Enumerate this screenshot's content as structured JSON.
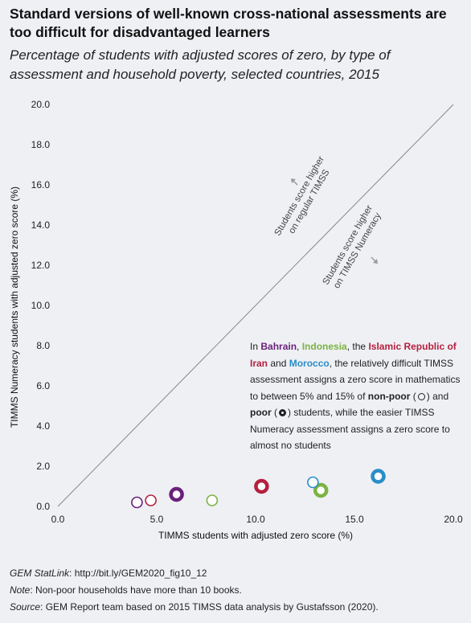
{
  "title": "Standard versions of well-known cross-national assessments are too difficult for disadvantaged learners",
  "subtitle": "Percentage of students with adjusted scores of zero, by type of assessment and household poverty, selected countries, 2015",
  "region_labels": {
    "upper_line1": "Students score higher",
    "upper_line2": "on regular TIMSS",
    "lower_line1": "Students score higher",
    "lower_line2": "on TIMSS Numeracy"
  },
  "annotation": {
    "in": "In",
    "bahrain": "Bahrain",
    "sep1": ", ",
    "indonesia": "Indonesia",
    "sep2": ", the",
    "iran": "Islamic Republic of Iran",
    "and": "and",
    "morocco": "Morocco",
    "rest1": ", the relatively difficult TIMSS assessment assigns a zero score in mathematics to between 5% and 15% of",
    "nonpoor": "non-poor",
    "rest2": "and",
    "poor": "poor",
    "rest3": "students, while the easier TIMSS Numeracy assessment assigns a zero score to almost no students"
  },
  "footer": {
    "statlink_label": "GEM StatLink",
    "statlink_value": ": http://bit.ly/GEM2020_fig10_12",
    "note_label": "Note",
    "note_value": ": Non-poor households have more than 10 books.",
    "source_label": "Source",
    "source_value": ": GEM Report team based on 2015 TIMSS data analysis by Gustafsson (2020)."
  },
  "colors": {
    "Bahrain": "#6a1f7a",
    "Indonesia": "#7cb342",
    "Islamic Republic of Iran": "#b5203f",
    "Morocco": "#2a8dc8",
    "diagonal": "#888888",
    "background": "#eef0f4"
  },
  "chart_data": {
    "type": "scatter",
    "xlabel": "TIMMS students with adjusted zero score (%)",
    "ylabel": "TIMMS Numeracy students with adjusted zero score (%)",
    "xlim": [
      0,
      20
    ],
    "ylim": [
      0,
      20
    ],
    "x_ticks": [
      "0.0",
      "5.0",
      "10.0",
      "15.0",
      "20.0"
    ],
    "y_ticks": [
      "0.0",
      "2.0",
      "4.0",
      "6.0",
      "8.0",
      "10.0",
      "12.0",
      "14.0",
      "16.0",
      "18.0",
      "20.0"
    ],
    "diagonal": true,
    "grid": false,
    "series": [
      {
        "name": "Bahrain",
        "points": [
          {
            "group": "non-poor",
            "x": 4.0,
            "y": 0.2
          },
          {
            "group": "poor",
            "x": 6.0,
            "y": 0.6
          }
        ]
      },
      {
        "name": "Indonesia",
        "points": [
          {
            "group": "non-poor",
            "x": 7.8,
            "y": 0.3
          },
          {
            "group": "poor",
            "x": 13.3,
            "y": 0.8
          }
        ]
      },
      {
        "name": "Islamic Republic of Iran",
        "points": [
          {
            "group": "non-poor",
            "x": 4.7,
            "y": 0.3
          },
          {
            "group": "poor",
            "x": 10.3,
            "y": 1.0
          }
        ]
      },
      {
        "name": "Morocco",
        "points": [
          {
            "group": "non-poor",
            "x": 12.9,
            "y": 1.2
          },
          {
            "group": "poor",
            "x": 16.2,
            "y": 1.5
          }
        ]
      }
    ]
  }
}
